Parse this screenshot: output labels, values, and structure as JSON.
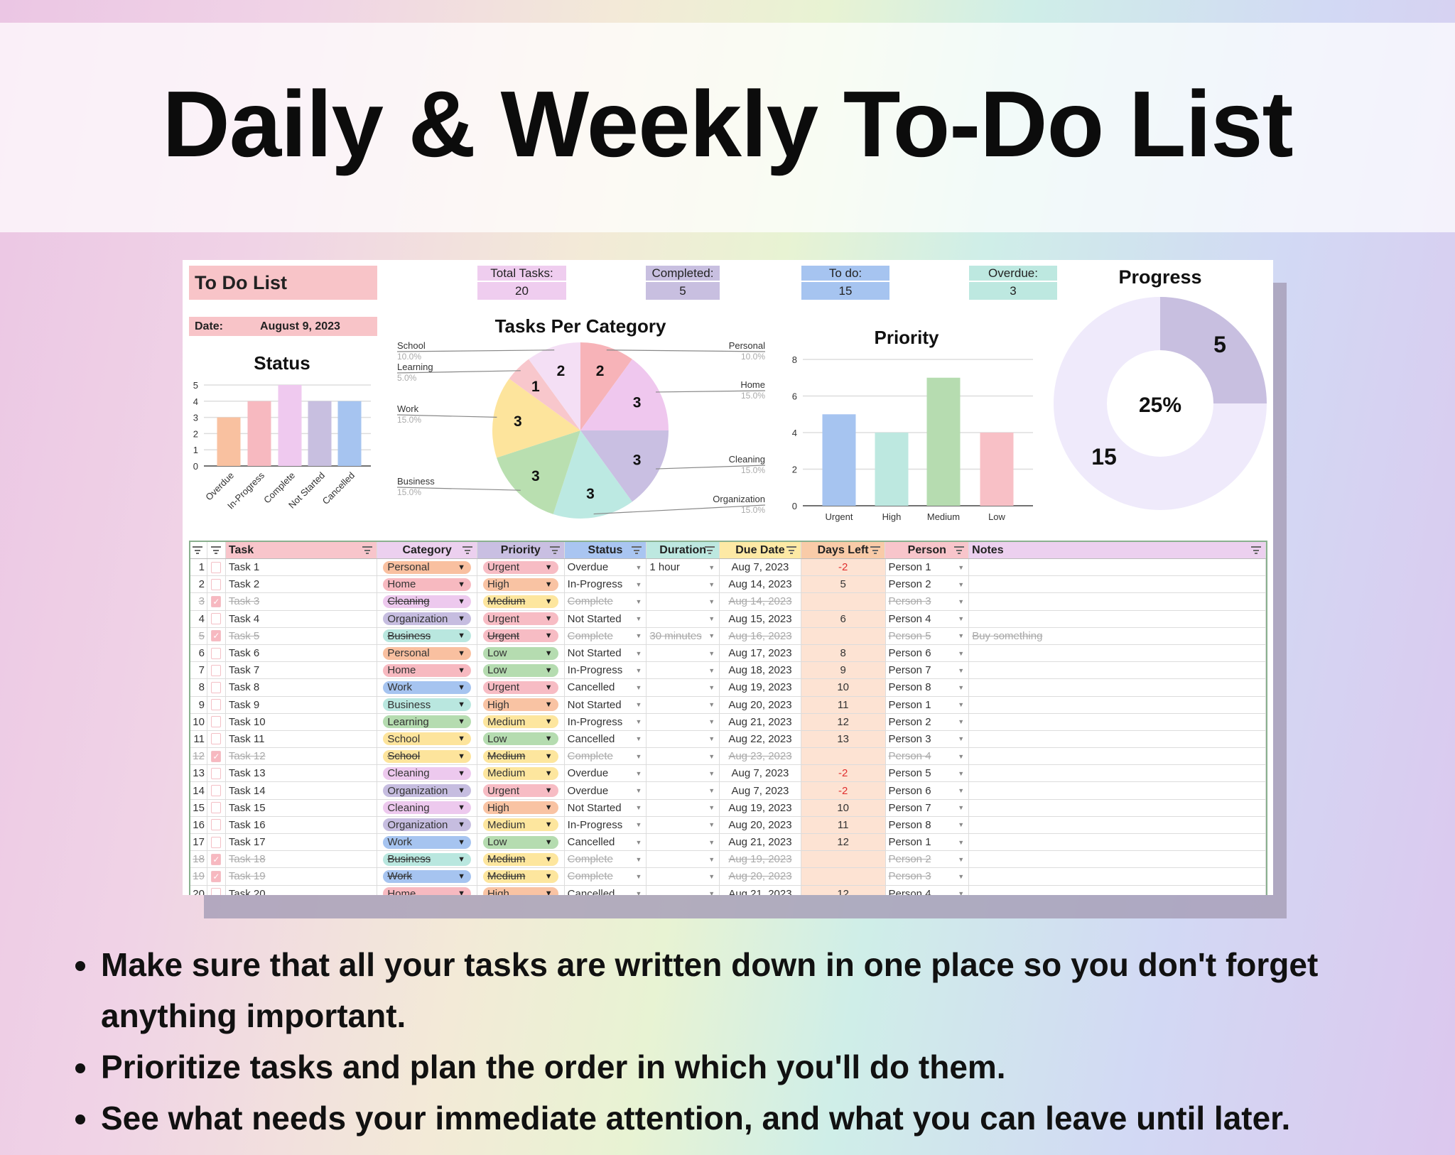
{
  "title": "Daily & Weekly To-Do List",
  "sheet": {
    "name": "To Do List",
    "date_label": "Date:",
    "date_value": "August 9, 2023",
    "stats": [
      {
        "label": "Total Tasks:",
        "value": "20",
        "color": "#efcdef"
      },
      {
        "label": "Completed:",
        "value": "5",
        "color": "#c8bfe0"
      },
      {
        "label": "To do:",
        "value": "15",
        "color": "#a6c4f0"
      },
      {
        "label": "Overdue:",
        "value": "3",
        "color": "#bde8e0"
      }
    ]
  },
  "chart_data": [
    {
      "type": "bar",
      "title": "Status",
      "categories": [
        "Overdue",
        "In-Progress",
        "Complete",
        "Not Started",
        "Cancelled"
      ],
      "values": [
        3,
        4,
        5,
        4,
        4
      ],
      "colors": [
        "#f9c1a0",
        "#f7b9c0",
        "#efc9ef",
        "#c8bfe0",
        "#a6c4f0"
      ],
      "ylim": [
        0,
        5
      ],
      "yticks": [
        0,
        1,
        2,
        3,
        4,
        5
      ],
      "grid": true,
      "legend": "none"
    },
    {
      "type": "pie",
      "title": "Tasks Per Category",
      "categories": [
        "Personal",
        "Home",
        "Cleaning",
        "Organization",
        "Business",
        "Work",
        "Learning",
        "School"
      ],
      "values": [
        2,
        3,
        3,
        3,
        3,
        3,
        1,
        2
      ],
      "percent_labels": [
        "10.0%",
        "15.0%",
        "15.0%",
        "15.0%",
        "15.0%",
        "15.0%",
        "5.0%",
        "10.0%"
      ],
      "colors": [
        "#f7b3b8",
        "#efc7ee",
        "#c9bfe2",
        "#bce9e2",
        "#b9dfb0",
        "#fde49c",
        "#f8c7cc",
        "#f4dff5"
      ],
      "legend": "labeled"
    },
    {
      "type": "bar",
      "title": "Priority",
      "categories": [
        "Urgent",
        "High",
        "Medium",
        "Low"
      ],
      "values": [
        5,
        4,
        7,
        4
      ],
      "colors": [
        "#a6c4f0",
        "#bde8e0",
        "#b6dcb0",
        "#f8c0c6"
      ],
      "ylim": [
        0,
        8
      ],
      "yticks": [
        0,
        2,
        4,
        6,
        8
      ],
      "grid": true,
      "legend": "none"
    },
    {
      "type": "pie",
      "title": "Progress",
      "donut": true,
      "categories": [
        "Completed",
        "To do"
      ],
      "values": [
        5,
        15
      ],
      "colors": [
        "#c8bfe0",
        "#efeafb"
      ],
      "center_label": "25%"
    }
  ],
  "table": {
    "headers": [
      "",
      "",
      "Task",
      "Category",
      "Priority",
      "Status",
      "Duration",
      "Due Date",
      "Days Left",
      "Person",
      "Notes"
    ],
    "header_colors": [
      "#fff",
      "#fff",
      "#f8c5cb",
      "#ecd0ef",
      "#c9bfe2",
      "#a9c5f1",
      "#bde8e0",
      "#fde9a5",
      "#f9cba8",
      "#f8c5cb",
      "#ecd0ef"
    ],
    "category_colors": {
      "Personal": "#f9c0a0",
      "Home": "#f7b9c0",
      "Cleaning": "#edc9ee",
      "Organization": "#c6bde0",
      "Business": "#b9e7df",
      "Work": "#a6c4f0",
      "Learning": "#b5dcb0",
      "School": "#fde49c"
    },
    "priority_colors": {
      "Urgent": "#f7bcc4",
      "High": "#f9c3a3",
      "Medium": "#fde69e",
      "Low": "#b5dcb0"
    },
    "rows": [
      {
        "n": "1",
        "done": false,
        "task": "Task 1",
        "category": "Personal",
        "priority": "Urgent",
        "status": "Overdue",
        "duration": "1 hour",
        "due": "Aug 7, 2023",
        "days": "-2",
        "person": "Person 1",
        "notes": ""
      },
      {
        "n": "2",
        "done": false,
        "task": "Task 2",
        "category": "Home",
        "priority": "High",
        "status": "In-Progress",
        "duration": "",
        "due": "Aug 14, 2023",
        "days": "5",
        "person": "Person 2",
        "notes": ""
      },
      {
        "n": "3",
        "done": true,
        "task": "Task 3",
        "category": "Cleaning",
        "priority": "Medium",
        "status": "Complete",
        "duration": "",
        "due": "Aug 14, 2023",
        "days": "",
        "person": "Person 3",
        "notes": ""
      },
      {
        "n": "4",
        "done": false,
        "task": "Task 4",
        "category": "Organization",
        "priority": "Urgent",
        "status": "Not Started",
        "duration": "",
        "due": "Aug 15, 2023",
        "days": "6",
        "person": "Person 4",
        "notes": ""
      },
      {
        "n": "5",
        "done": true,
        "task": "Task 5",
        "category": "Business",
        "priority": "Urgent",
        "status": "Complete",
        "duration": "30 minutes",
        "due": "Aug 16, 2023",
        "days": "",
        "person": "Person 5",
        "notes": "Buy something"
      },
      {
        "n": "6",
        "done": false,
        "task": "Task 6",
        "category": "Personal",
        "priority": "Low",
        "status": "Not Started",
        "duration": "",
        "due": "Aug 17, 2023",
        "days": "8",
        "person": "Person 6",
        "notes": ""
      },
      {
        "n": "7",
        "done": false,
        "task": "Task 7",
        "category": "Home",
        "priority": "Low",
        "status": "In-Progress",
        "duration": "",
        "due": "Aug 18, 2023",
        "days": "9",
        "person": "Person 7",
        "notes": ""
      },
      {
        "n": "8",
        "done": false,
        "task": "Task 8",
        "category": "Work",
        "priority": "Urgent",
        "status": "Cancelled",
        "duration": "",
        "due": "Aug 19, 2023",
        "days": "10",
        "person": "Person 8",
        "notes": ""
      },
      {
        "n": "9",
        "done": false,
        "task": "Task 9",
        "category": "Business",
        "priority": "High",
        "status": "Not Started",
        "duration": "",
        "due": "Aug 20, 2023",
        "days": "11",
        "person": "Person 1",
        "notes": ""
      },
      {
        "n": "10",
        "done": false,
        "task": "Task 10",
        "category": "Learning",
        "priority": "Medium",
        "status": "In-Progress",
        "duration": "",
        "due": "Aug 21, 2023",
        "days": "12",
        "person": "Person 2",
        "notes": ""
      },
      {
        "n": "11",
        "done": false,
        "task": "Task 11",
        "category": "School",
        "priority": "Low",
        "status": "Cancelled",
        "duration": "",
        "due": "Aug 22, 2023",
        "days": "13",
        "person": "Person 3",
        "notes": ""
      },
      {
        "n": "12",
        "done": true,
        "task": "Task 12",
        "category": "School",
        "priority": "Medium",
        "status": "Complete",
        "duration": "",
        "due": "Aug 23, 2023",
        "days": "",
        "person": "Person 4",
        "notes": ""
      },
      {
        "n": "13",
        "done": false,
        "task": "Task 13",
        "category": "Cleaning",
        "priority": "Medium",
        "status": "Overdue",
        "duration": "",
        "due": "Aug 7, 2023",
        "days": "-2",
        "person": "Person 5",
        "notes": ""
      },
      {
        "n": "14",
        "done": false,
        "task": "Task 14",
        "category": "Organization",
        "priority": "Urgent",
        "status": "Overdue",
        "duration": "",
        "due": "Aug 7, 2023",
        "days": "-2",
        "person": "Person 6",
        "notes": ""
      },
      {
        "n": "15",
        "done": false,
        "task": "Task 15",
        "category": "Cleaning",
        "priority": "High",
        "status": "Not Started",
        "duration": "",
        "due": "Aug 19, 2023",
        "days": "10",
        "person": "Person 7",
        "notes": ""
      },
      {
        "n": "16",
        "done": false,
        "task": "Task 16",
        "category": "Organization",
        "priority": "Medium",
        "status": "In-Progress",
        "duration": "",
        "due": "Aug 20, 2023",
        "days": "11",
        "person": "Person 8",
        "notes": ""
      },
      {
        "n": "17",
        "done": false,
        "task": "Task 17",
        "category": "Work",
        "priority": "Low",
        "status": "Cancelled",
        "duration": "",
        "due": "Aug 21, 2023",
        "days": "12",
        "person": "Person 1",
        "notes": ""
      },
      {
        "n": "18",
        "done": true,
        "task": "Task 18",
        "category": "Business",
        "priority": "Medium",
        "status": "Complete",
        "duration": "",
        "due": "Aug 19, 2023",
        "days": "",
        "person": "Person 2",
        "notes": ""
      },
      {
        "n": "19",
        "done": true,
        "task": "Task 19",
        "category": "Work",
        "priority": "Medium",
        "status": "Complete",
        "duration": "",
        "due": "Aug 20, 2023",
        "days": "",
        "person": "Person 3",
        "notes": ""
      },
      {
        "n": "20",
        "done": false,
        "task": "Task 20",
        "category": "Home",
        "priority": "High",
        "status": "Cancelled",
        "duration": "",
        "due": "Aug 21, 2023",
        "days": "12",
        "person": "Person 4",
        "notes": ""
      }
    ]
  },
  "bullets": [
    "Make sure that all your tasks are written down in one place so you don't forget anything important.",
    "Prioritize tasks and plan the order in which you'll do them.",
    "See what needs your immediate attention, and what you can leave until later."
  ]
}
